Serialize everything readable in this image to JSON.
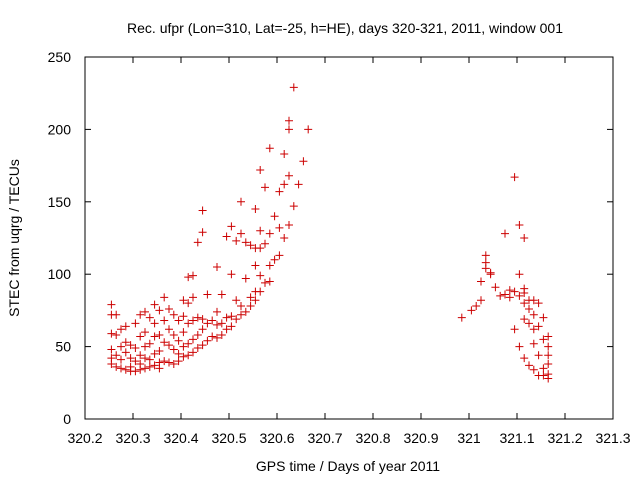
{
  "chart_data": {
    "type": "scatter",
    "title": "Rec. ufpr (Lon=310, Lat=-25, h=HE), days 320-321, 2011, window 001",
    "xlabel": "GPS time / Days of year 2011",
    "ylabel": "STEC from uqrg / TECUs",
    "xlim": [
      320.2,
      321.3
    ],
    "ylim": [
      0,
      250
    ],
    "x_ticks": [
      320.2,
      320.3,
      320.4,
      320.5,
      320.6,
      320.7,
      320.8,
      320.9,
      321,
      321.1,
      321.2,
      321.3
    ],
    "x_tick_labels": [
      "320.2",
      "320.3",
      "320.4",
      "320.5",
      "320.6",
      "320.7",
      "320.8",
      "320.9",
      "321",
      "321.1",
      "321.2",
      "321.3"
    ],
    "y_ticks": [
      0,
      50,
      100,
      150,
      200,
      250
    ],
    "y_tick_labels": [
      "0",
      "50",
      "100",
      "150",
      "200",
      "250"
    ],
    "grid": false,
    "marker": "plus",
    "color": "#cc0000",
    "series": [
      {
        "name": "STEC",
        "points": [
          [
            320.255,
            79
          ],
          [
            320.255,
            72
          ],
          [
            320.255,
            59
          ],
          [
            320.255,
            48
          ],
          [
            320.255,
            42
          ],
          [
            320.255,
            38
          ],
          [
            320.265,
            72
          ],
          [
            320.265,
            58
          ],
          [
            320.265,
            44
          ],
          [
            320.265,
            36
          ],
          [
            320.275,
            62
          ],
          [
            320.275,
            50
          ],
          [
            320.275,
            41
          ],
          [
            320.275,
            35
          ],
          [
            320.285,
            64
          ],
          [
            320.285,
            53
          ],
          [
            320.285,
            46
          ],
          [
            320.285,
            34
          ],
          [
            320.295,
            51
          ],
          [
            320.295,
            42
          ],
          [
            320.295,
            36
          ],
          [
            320.295,
            33
          ],
          [
            320.305,
            66
          ],
          [
            320.305,
            49
          ],
          [
            320.305,
            40
          ],
          [
            320.305,
            33
          ],
          [
            320.315,
            72
          ],
          [
            320.315,
            57
          ],
          [
            320.315,
            44
          ],
          [
            320.315,
            38
          ],
          [
            320.315,
            34
          ],
          [
            320.325,
            74
          ],
          [
            320.325,
            60
          ],
          [
            320.325,
            50
          ],
          [
            320.325,
            42
          ],
          [
            320.325,
            35
          ],
          [
            320.335,
            70
          ],
          [
            320.335,
            52
          ],
          [
            320.335,
            41
          ],
          [
            320.335,
            36
          ],
          [
            320.345,
            79
          ],
          [
            320.345,
            66
          ],
          [
            320.345,
            57
          ],
          [
            320.345,
            45
          ],
          [
            320.345,
            37
          ],
          [
            320.355,
            75
          ],
          [
            320.355,
            58
          ],
          [
            320.355,
            47
          ],
          [
            320.355,
            39
          ],
          [
            320.355,
            35
          ],
          [
            320.365,
            84
          ],
          [
            320.365,
            68
          ],
          [
            320.365,
            53
          ],
          [
            320.365,
            40
          ],
          [
            320.375,
            76
          ],
          [
            320.375,
            62
          ],
          [
            320.375,
            51
          ],
          [
            320.375,
            39
          ],
          [
            320.385,
            72
          ],
          [
            320.385,
            58
          ],
          [
            320.385,
            48
          ],
          [
            320.385,
            38
          ],
          [
            320.395,
            68
          ],
          [
            320.395,
            54
          ],
          [
            320.395,
            45
          ],
          [
            320.395,
            40
          ],
          [
            320.405,
            82
          ],
          [
            320.405,
            71
          ],
          [
            320.405,
            60
          ],
          [
            320.405,
            50
          ],
          [
            320.405,
            43
          ],
          [
            320.415,
            98
          ],
          [
            320.415,
            80
          ],
          [
            320.415,
            66
          ],
          [
            320.415,
            52
          ],
          [
            320.415,
            44
          ],
          [
            320.425,
            99
          ],
          [
            320.425,
            84
          ],
          [
            320.425,
            68
          ],
          [
            320.425,
            55
          ],
          [
            320.425,
            46
          ],
          [
            320.435,
            122
          ],
          [
            320.435,
            70
          ],
          [
            320.435,
            58
          ],
          [
            320.435,
            49
          ],
          [
            320.445,
            144
          ],
          [
            320.445,
            129
          ],
          [
            320.445,
            69
          ],
          [
            320.445,
            62
          ],
          [
            320.445,
            51
          ],
          [
            320.455,
            86
          ],
          [
            320.455,
            66
          ],
          [
            320.455,
            54
          ],
          [
            320.465,
            68
          ],
          [
            320.465,
            57
          ],
          [
            320.475,
            105
          ],
          [
            320.475,
            74
          ],
          [
            320.475,
            65
          ],
          [
            320.475,
            56
          ],
          [
            320.485,
            86
          ],
          [
            320.485,
            66
          ],
          [
            320.485,
            58
          ],
          [
            320.495,
            126
          ],
          [
            320.495,
            70
          ],
          [
            320.495,
            62
          ],
          [
            320.505,
            133
          ],
          [
            320.505,
            100
          ],
          [
            320.505,
            71
          ],
          [
            320.505,
            64
          ],
          [
            320.515,
            123
          ],
          [
            320.515,
            82
          ],
          [
            320.515,
            69
          ],
          [
            320.525,
            150
          ],
          [
            320.525,
            128
          ],
          [
            320.525,
            78
          ],
          [
            320.525,
            72
          ],
          [
            320.535,
            122
          ],
          [
            320.535,
            97
          ],
          [
            320.535,
            74
          ],
          [
            320.545,
            120
          ],
          [
            320.545,
            84
          ],
          [
            320.545,
            78
          ],
          [
            320.555,
            145
          ],
          [
            320.555,
            118
          ],
          [
            320.555,
            106
          ],
          [
            320.555,
            88
          ],
          [
            320.555,
            82
          ],
          [
            320.565,
            172
          ],
          [
            320.565,
            130
          ],
          [
            320.565,
            118
          ],
          [
            320.565,
            99
          ],
          [
            320.565,
            88
          ],
          [
            320.575,
            160
          ],
          [
            320.575,
            121
          ],
          [
            320.575,
            94
          ],
          [
            320.585,
            187
          ],
          [
            320.585,
            128
          ],
          [
            320.585,
            106
          ],
          [
            320.585,
            95
          ],
          [
            320.595,
            140
          ],
          [
            320.595,
            110
          ],
          [
            320.605,
            157
          ],
          [
            320.605,
            132
          ],
          [
            320.605,
            113
          ],
          [
            320.615,
            183
          ],
          [
            320.615,
            162
          ],
          [
            320.615,
            125
          ],
          [
            320.625,
            206
          ],
          [
            320.625,
            200
          ],
          [
            320.625,
            168
          ],
          [
            320.625,
            134
          ],
          [
            320.635,
            229
          ],
          [
            320.635,
            147
          ],
          [
            320.645,
            162
          ],
          [
            320.655,
            178
          ],
          [
            320.665,
            200
          ],
          [
            320.985,
            70
          ],
          [
            321.005,
            75
          ],
          [
            321.015,
            78
          ],
          [
            321.025,
            82
          ],
          [
            321.025,
            95
          ],
          [
            321.035,
            113
          ],
          [
            321.035,
            108
          ],
          [
            321.035,
            104
          ],
          [
            321.045,
            101
          ],
          [
            321.045,
            100
          ],
          [
            321.055,
            91
          ],
          [
            321.065,
            85
          ],
          [
            321.075,
            128
          ],
          [
            321.075,
            86
          ],
          [
            321.085,
            89
          ],
          [
            321.085,
            84
          ],
          [
            321.095,
            167
          ],
          [
            321.095,
            88
          ],
          [
            321.095,
            62
          ],
          [
            321.105,
            134
          ],
          [
            321.105,
            100
          ],
          [
            321.105,
            85
          ],
          [
            321.105,
            50
          ],
          [
            321.115,
            125
          ],
          [
            321.115,
            90
          ],
          [
            321.115,
            87
          ],
          [
            321.115,
            80
          ],
          [
            321.115,
            69
          ],
          [
            321.115,
            42
          ],
          [
            321.125,
            82
          ],
          [
            321.125,
            76
          ],
          [
            321.125,
            66
          ],
          [
            321.125,
            37
          ],
          [
            321.135,
            82
          ],
          [
            321.135,
            72
          ],
          [
            321.135,
            62
          ],
          [
            321.135,
            52
          ],
          [
            321.135,
            34
          ],
          [
            321.145,
            80
          ],
          [
            321.145,
            64
          ],
          [
            321.145,
            44
          ],
          [
            321.145,
            30
          ],
          [
            321.155,
            70
          ],
          [
            321.155,
            55
          ],
          [
            321.155,
            35
          ],
          [
            321.155,
            30
          ],
          [
            321.165,
            57
          ],
          [
            321.165,
            50
          ],
          [
            321.165,
            44
          ],
          [
            321.165,
            38
          ],
          [
            321.165,
            31
          ],
          [
            321.165,
            28
          ]
        ]
      }
    ]
  }
}
